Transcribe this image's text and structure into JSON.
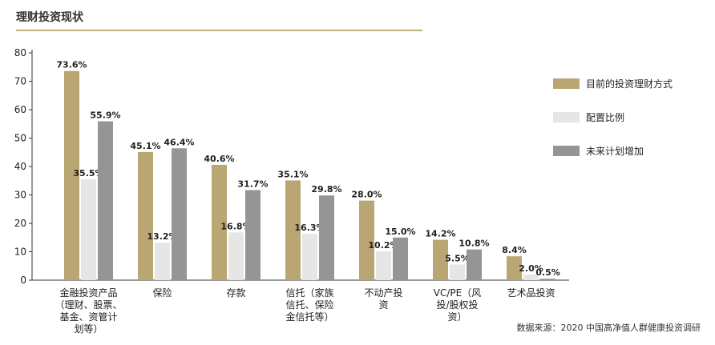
{
  "header": {
    "title": "理财投资现状"
  },
  "footer": {
    "source": "数据来源：2020 中国高净值人群健康投资调研"
  },
  "colors": {
    "series": [
      "#b9a673",
      "#e6e6e6",
      "#959595"
    ],
    "axis": "#333333",
    "rule": "#c2b07a"
  },
  "chart_data": {
    "type": "bar",
    "categories": [
      [
        "金融投资产品",
        "（理财、股票、",
        "基金、资管计",
        "划等）"
      ],
      [
        "保险"
      ],
      [
        "存款"
      ],
      [
        "信托（家族",
        "信托、保险",
        "金信托等）"
      ],
      [
        "不动产投",
        "资"
      ],
      [
        "VC/PE（风",
        "投/股权投",
        "资）"
      ],
      [
        "艺术品投资"
      ]
    ],
    "series": [
      {
        "name": "目前的投资理财方式",
        "values": [
          73.6,
          45.1,
          40.6,
          35.1,
          28.0,
          14.2,
          8.4
        ],
        "labels": [
          "73.6%",
          "45.1%",
          "40.6%",
          "35.1%",
          "28.0%",
          "14.2%",
          "8.4%"
        ]
      },
      {
        "name": "配置比例",
        "values": [
          35.5,
          13.2,
          16.8,
          16.3,
          10.2,
          5.5,
          2.0
        ],
        "labels": [
          "35.5%",
          "13.2%",
          "16.8%",
          "16.3%",
          "10.2%",
          "5.5%",
          "2.0%"
        ]
      },
      {
        "name": "未来计划增加",
        "values": [
          55.9,
          46.4,
          31.7,
          29.8,
          15.0,
          10.8,
          0.5
        ],
        "labels": [
          "55.9%",
          "46.4%",
          "31.7%",
          "29.8%",
          "15.0%",
          "10.8%",
          "0.5%"
        ]
      }
    ],
    "yticks": [
      "0",
      "10",
      "20",
      "30",
      "40",
      "50",
      "60",
      "70",
      "80"
    ],
    "ylim": [
      0,
      80
    ],
    "grid": false,
    "legend": "right"
  }
}
